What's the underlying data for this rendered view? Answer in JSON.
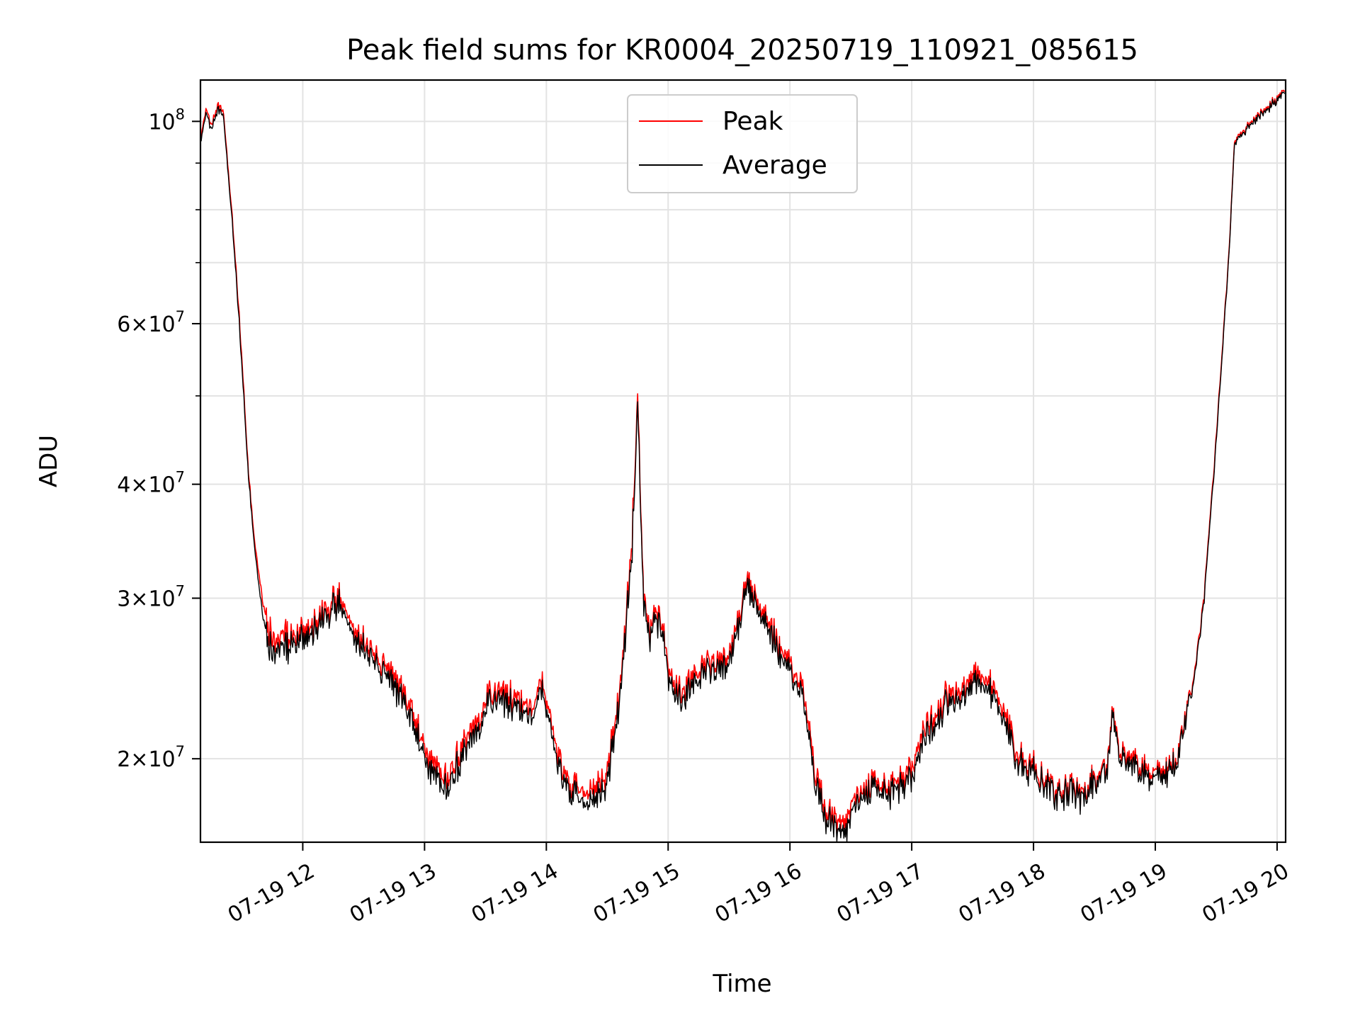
{
  "chart_data": {
    "type": "line",
    "title": "Peak field sums for KR0004_20250719_110921_085615",
    "xlabel": "Time",
    "ylabel": "ADU",
    "x_tick_labels": [
      "07-19 12",
      "07-19 13",
      "07-19 14",
      "07-19 15",
      "07-19 16",
      "07-19 17",
      "07-19 18",
      "07-19 19",
      "07-19 20"
    ],
    "x_tick_values": [
      12,
      13,
      14,
      15,
      16,
      17,
      18,
      19,
      20
    ],
    "xlim": [
      11.16,
      20.07
    ],
    "y_scale": "log",
    "ylim": [
      16200000,
      111000000
    ],
    "y_major_ticks": [
      {
        "value": 20000000,
        "mantissa": "2×10",
        "exp": "7"
      },
      {
        "value": 30000000,
        "mantissa": "3×10",
        "exp": "7"
      },
      {
        "value": 40000000,
        "mantissa": "4×10",
        "exp": "7"
      },
      {
        "value": 60000000,
        "mantissa": "6×10",
        "exp": "7"
      },
      {
        "value": 100000000,
        "mantissa": "10",
        "exp": "8"
      }
    ],
    "y_minor_ticks": [
      50000000,
      70000000,
      80000000,
      90000000
    ],
    "grid": true,
    "legend_position": "top-center",
    "series": [
      {
        "name": "Peak",
        "color": "#ff0000",
        "x": [
          11.16,
          11.2,
          11.25,
          11.3,
          11.35,
          11.4,
          11.45,
          11.5,
          11.55,
          11.6,
          11.65,
          11.7,
          11.75,
          11.8,
          11.85,
          11.9,
          12.0,
          12.1,
          12.2,
          12.3,
          12.35,
          12.4,
          12.5,
          12.6,
          12.7,
          12.8,
          12.9,
          13.0,
          13.1,
          13.2,
          13.3,
          13.4,
          13.5,
          13.6,
          13.7,
          13.8,
          13.9,
          13.95,
          14.0,
          14.1,
          14.2,
          14.3,
          14.4,
          14.5,
          14.6,
          14.65,
          14.7,
          14.75,
          14.8,
          14.85,
          14.9,
          14.95,
          15.0,
          15.1,
          15.2,
          15.3,
          15.4,
          15.5,
          15.6,
          15.65,
          15.7,
          15.8,
          15.9,
          16.0,
          16.1,
          16.2,
          16.3,
          16.4,
          16.45,
          16.5,
          16.6,
          16.7,
          16.8,
          16.9,
          17.0,
          17.1,
          17.2,
          17.3,
          17.4,
          17.5,
          17.6,
          17.7,
          17.8,
          17.9,
          18.0,
          18.1,
          18.2,
          18.3,
          18.4,
          18.5,
          18.6,
          18.65,
          18.7,
          18.8,
          18.9,
          19.0,
          19.1,
          19.2,
          19.3,
          19.4,
          19.5,
          19.6,
          19.65,
          19.7,
          19.8,
          19.9,
          20.0,
          20.07
        ],
        "values": [
          96000000,
          103000000,
          99000000,
          104000000,
          102000000,
          85000000,
          70000000,
          55000000,
          42000000,
          35000000,
          31000000,
          28500000,
          27000000,
          26500000,
          27500000,
          27000000,
          27500000,
          28500000,
          29500000,
          30000000,
          29000000,
          28000000,
          27000000,
          26000000,
          25000000,
          24000000,
          22500000,
          20500000,
          19500000,
          19000000,
          20500000,
          21500000,
          23000000,
          24000000,
          23500000,
          23000000,
          22500000,
          24500000,
          23500000,
          20000000,
          18500000,
          18500000,
          18500000,
          19500000,
          23500000,
          28000000,
          34000000,
          50000000,
          30000000,
          27500000,
          29000000,
          28000000,
          25000000,
          23500000,
          24500000,
          25500000,
          25500000,
          26000000,
          29000000,
          31500000,
          31000000,
          29000000,
          26500000,
          25500000,
          24000000,
          19500000,
          17500000,
          17000000,
          16800000,
          18000000,
          18500000,
          19000000,
          18500000,
          19000000,
          19500000,
          21500000,
          22500000,
          23500000,
          24000000,
          24500000,
          24500000,
          23500000,
          21500000,
          20000000,
          19500000,
          19000000,
          18500000,
          18500000,
          18200000,
          19000000,
          19500000,
          22500000,
          20500000,
          20000000,
          19500000,
          19200000,
          19500000,
          20500000,
          23500000,
          30000000,
          45000000,
          70000000,
          95000000,
          97000000,
          100000000,
          103000000,
          106000000,
          108000000
        ]
      },
      {
        "name": "Average",
        "color": "#000000",
        "x": [
          11.16,
          11.2,
          11.25,
          11.3,
          11.35,
          11.4,
          11.45,
          11.5,
          11.55,
          11.6,
          11.65,
          11.7,
          11.75,
          11.8,
          11.85,
          11.9,
          12.0,
          12.1,
          12.2,
          12.3,
          12.35,
          12.4,
          12.5,
          12.6,
          12.7,
          12.8,
          12.9,
          13.0,
          13.1,
          13.2,
          13.3,
          13.4,
          13.5,
          13.6,
          13.7,
          13.8,
          13.9,
          13.95,
          14.0,
          14.1,
          14.2,
          14.3,
          14.4,
          14.5,
          14.6,
          14.65,
          14.7,
          14.75,
          14.8,
          14.85,
          14.9,
          14.95,
          15.0,
          15.1,
          15.2,
          15.3,
          15.4,
          15.5,
          15.6,
          15.65,
          15.7,
          15.8,
          15.9,
          16.0,
          16.1,
          16.2,
          16.3,
          16.4,
          16.45,
          16.5,
          16.6,
          16.7,
          16.8,
          16.9,
          17.0,
          17.1,
          17.2,
          17.3,
          17.4,
          17.5,
          17.6,
          17.7,
          17.8,
          17.9,
          18.0,
          18.1,
          18.2,
          18.3,
          18.4,
          18.5,
          18.6,
          18.65,
          18.7,
          18.8,
          18.9,
          19.0,
          19.1,
          19.2,
          19.3,
          19.4,
          19.5,
          19.6,
          19.65,
          19.7,
          19.8,
          19.9,
          20.0,
          20.07
        ],
        "values": [
          95000000,
          102000000,
          98000000,
          103000000,
          101000000,
          84000000,
          69000000,
          54000000,
          41500000,
          34500000,
          30000000,
          27500000,
          26000000,
          26000000,
          26500000,
          26500000,
          27000000,
          28000000,
          29000000,
          29500000,
          28500000,
          27500000,
          26500000,
          25500000,
          24500000,
          23500000,
          22000000,
          20000000,
          19000000,
          18500000,
          20000000,
          21000000,
          22500000,
          23500000,
          23000000,
          22500000,
          22000000,
          24000000,
          23000000,
          19500000,
          18200000,
          18000000,
          18000000,
          19000000,
          23000000,
          27500000,
          33000000,
          49000000,
          29500000,
          27000000,
          28500000,
          27500000,
          24500000,
          23000000,
          24000000,
          25000000,
          25000000,
          25500000,
          28500000,
          31000000,
          30500000,
          28500000,
          26000000,
          25000000,
          23500000,
          19000000,
          17200000,
          16600000,
          16400000,
          17600000,
          18200000,
          18700000,
          18200000,
          18700000,
          19000000,
          21000000,
          22000000,
          23000000,
          23500000,
          24000000,
          24000000,
          23000000,
          21000000,
          19700000,
          19200000,
          18800000,
          18300000,
          18300000,
          18000000,
          18800000,
          19300000,
          22300000,
          20200000,
          19700000,
          19200000,
          18900000,
          19300000,
          20300000,
          23300000,
          29700000,
          44500000,
          69500000,
          94500000,
          96500000,
          99500000,
          102500000,
          105500000,
          107500000
        ]
      }
    ]
  }
}
